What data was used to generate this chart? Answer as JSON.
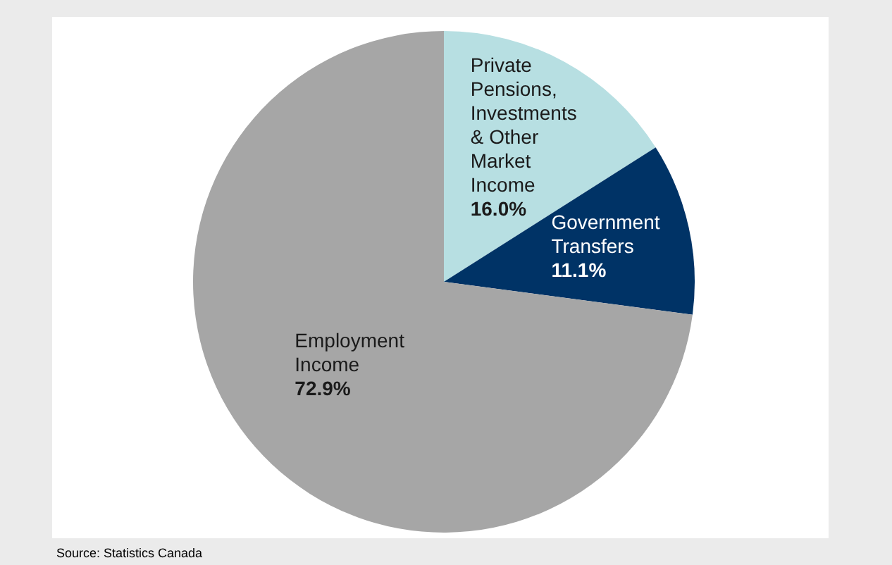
{
  "chart_data": {
    "type": "pie",
    "categories": [
      "Private Pensions, Investments & Other Market Income",
      "Government Transfers",
      "Employment Income"
    ],
    "values": [
      16.0,
      11.1,
      72.9
    ],
    "colors": [
      "#b7dfe2",
      "#003366",
      "#a6a6a6"
    ],
    "value_labels": [
      "16.0%",
      "11.1%",
      "72.9%"
    ],
    "legend": false,
    "annotations": [
      "Source: Statistics Canada"
    ]
  }
}
